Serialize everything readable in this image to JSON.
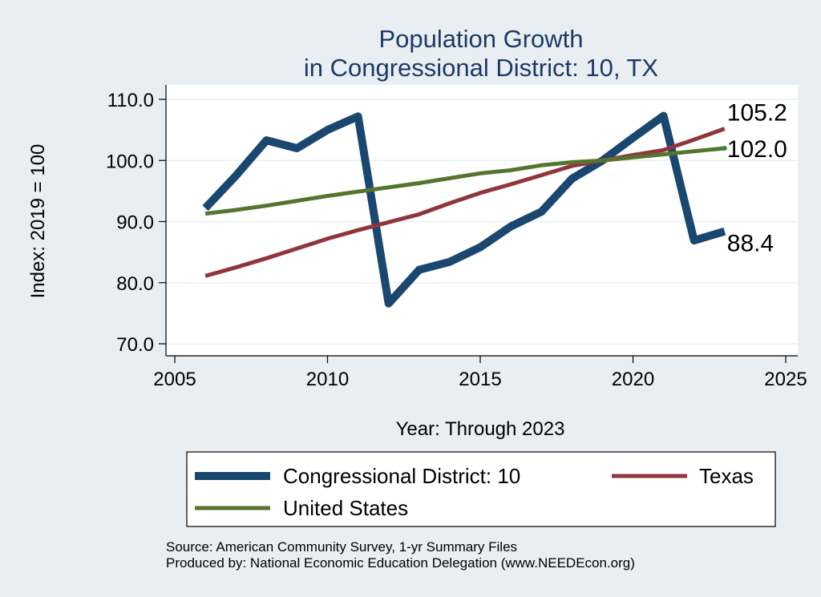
{
  "chart_data": {
    "type": "line",
    "title": [
      "Population Growth",
      "in Congressional District: 10, TX"
    ],
    "xlabel": "Year: Through 2023",
    "ylabel": "Index: 2019 = 100",
    "xlim": [
      2005,
      2025
    ],
    "ylim": [
      70,
      110
    ],
    "xticks": [
      2005,
      2010,
      2015,
      2020,
      2025
    ],
    "yticks": [
      70,
      80,
      90,
      100,
      110
    ],
    "ytick_labels": [
      "70.0",
      "80.0",
      "90.0",
      "100.0",
      "110.0"
    ],
    "grid": true,
    "legend_position": "bottom",
    "x": [
      2006,
      2007,
      2008,
      2009,
      2010,
      2011,
      2012,
      2013,
      2014,
      2015,
      2016,
      2017,
      2018,
      2019,
      2020,
      2021,
      2022,
      2023
    ],
    "series": [
      {
        "name": "Congressional District: 10",
        "color": "#1a476f",
        "values": [
          92.2,
          97.5,
          103.3,
          102.0,
          105.0,
          107.2,
          76.6,
          82.1,
          83.4,
          85.8,
          89.2,
          91.6,
          97.0,
          100.0,
          103.7,
          107.3,
          86.9,
          88.4
        ],
        "end_label": "88.4"
      },
      {
        "name": "Texas",
        "color": "#90353b",
        "values": [
          81.1,
          82.5,
          84.0,
          85.6,
          87.2,
          88.6,
          89.9,
          91.2,
          93.0,
          94.7,
          96.1,
          97.6,
          99.1,
          100.0,
          100.9,
          101.7,
          103.4,
          105.2
        ],
        "end_label": "105.2"
      },
      {
        "name": "United States",
        "color": "#55752f",
        "values": [
          91.3,
          91.9,
          92.6,
          93.4,
          94.2,
          94.9,
          95.6,
          96.3,
          97.1,
          97.9,
          98.4,
          99.2,
          99.7,
          100.0,
          100.5,
          101.0,
          101.5,
          102.0
        ],
        "end_label": "102.0"
      }
    ],
    "legend": [
      "Congressional District: 10",
      "Texas",
      "United States"
    ],
    "source_lines": [
      "Source: American Community Survey, 1-yr Summary Files",
      "Produced by: National Economic Education Delegation (www.NEEDEcon.org)"
    ]
  }
}
